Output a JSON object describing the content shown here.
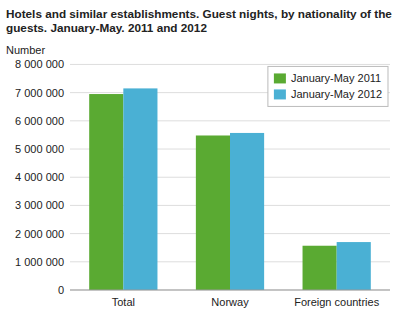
{
  "chart_data": {
    "type": "bar",
    "title": "Hotels and similar establishments. Guest nights, by nationality of the\nguests. January-May. 2011 and 2012",
    "ylabel": "Number",
    "categories": [
      "Total",
      "Norway",
      "Foreign countries"
    ],
    "series": [
      {
        "name": "January-May 2011",
        "color": "#5aaa32",
        "values": [
          6950000,
          5480000,
          1570000
        ]
      },
      {
        "name": "January-May 2012",
        "color": "#4ab0d4",
        "values": [
          7150000,
          5570000,
          1700000
        ]
      }
    ],
    "ylim": [
      0,
      8000000
    ],
    "yticks": [
      0,
      {
        "value": 1000000,
        "label": "1 000 000"
      },
      {
        "value": 2000000,
        "label": "2 000 000"
      },
      {
        "value": 3000000,
        "label": "3 000 000"
      },
      {
        "value": 4000000,
        "label": "4 000 000"
      },
      {
        "value": 5000000,
        "label": "5 000 000"
      },
      {
        "value": 6000000,
        "label": "6 000 000"
      },
      {
        "value": 7000000,
        "label": "7 000 000"
      },
      {
        "value": 8000000,
        "label": "8 000 000"
      }
    ],
    "grid": true,
    "legend": "upper right"
  }
}
